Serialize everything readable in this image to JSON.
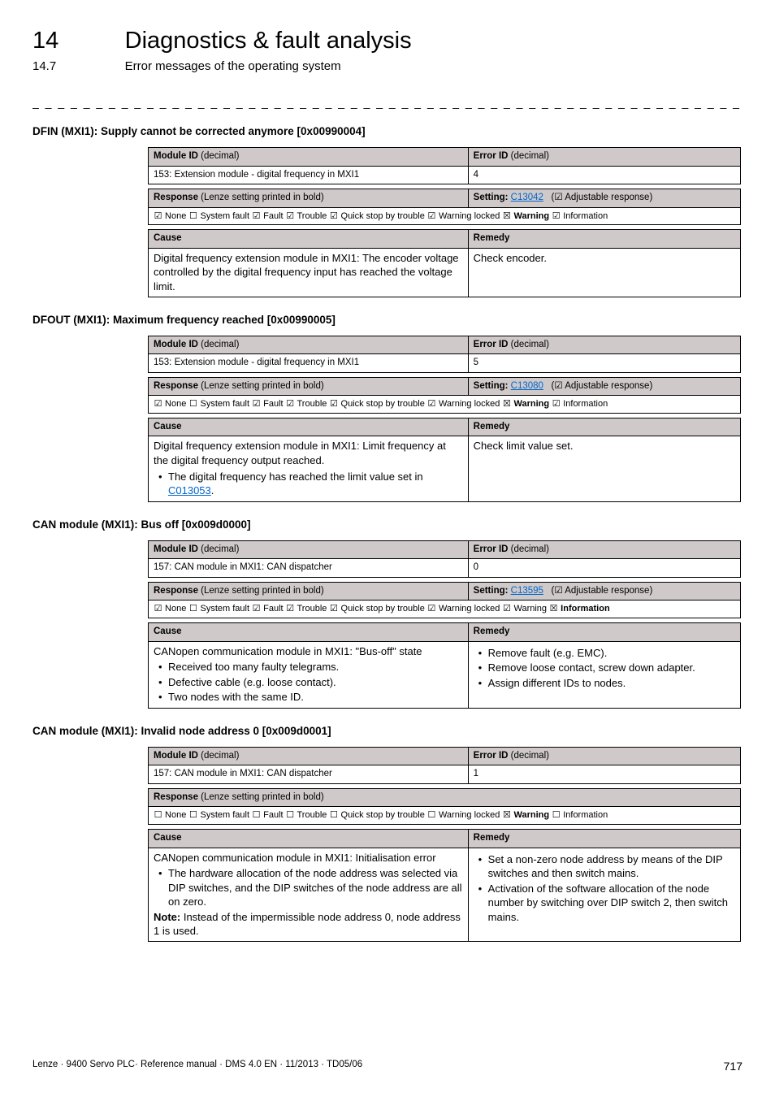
{
  "header": {
    "chapter_num": "14",
    "chapter_title": "Diagnostics & fault analysis",
    "section_num": "14.7",
    "section_title": "Error messages of the operating system"
  },
  "dashline": "_ _ _ _ _ _ _ _ _ _ _ _ _ _ _ _ _ _ _ _ _ _ _ _ _ _ _ _ _ _ _ _ _ _ _ _ _ _ _ _ _ _ _ _ _ _ _ _ _ _ _ _ _ _ _ _ _ _ _ _ _",
  "labels": {
    "module_id": "Module ID",
    "error_id": "Error ID",
    "decimal_suffix": " (decimal)",
    "response": "Response",
    "response_note": " (Lenze setting printed in bold)",
    "setting": "Setting: ",
    "adj_resp": " Adjustable response)",
    "cause": "Cause",
    "remedy": "Remedy",
    "note_prefix": "Note:"
  },
  "glyph": {
    "chk": "☑",
    "unchk": "☐",
    "x": "☒",
    "chk_paren_open": "(☑"
  },
  "errors": [
    {
      "heading": "DFIN (MXI1): Supply cannot be corrected anymore [0x00990004]",
      "module_id": "153: Extension module - digital frequency in MXI1",
      "error_id": "4",
      "setting_code": "C13042",
      "has_setting_row": true,
      "responses": {
        "none": "☑",
        "system_fault": "☐",
        "fault": "☑",
        "trouble": "☑",
        "quick_stop": "☑",
        "warning_locked": "☑",
        "warning": "☒",
        "warning_bold": true,
        "information": "☑",
        "information_bold": false
      },
      "cause_html": "Digital frequency extension module in MXI1: The encoder voltage controlled by the digital frequency input has reached the voltage limit.",
      "remedy_html": "Check encoder."
    },
    {
      "heading": "DFOUT (MXI1): Maximum frequency reached [0x00990005]",
      "module_id": "153: Extension module - digital frequency in MXI1",
      "error_id": "5",
      "setting_code": "C13080",
      "has_setting_row": true,
      "responses": {
        "none": "☑",
        "system_fault": "☐",
        "fault": "☑",
        "trouble": "☑",
        "quick_stop": "☑",
        "warning_locked": "☑",
        "warning": "☒",
        "warning_bold": true,
        "information": "☑",
        "information_bold": false
      },
      "cause_html": "Digital frequency extension module in MXI1: Limit frequency at the digital frequency output reached.<ul><li>The digital frequency has reached the limit value set in <a class='link' data-name='code-link' data-interactable='true'>C013053</a>.</li></ul>",
      "remedy_html": "Check limit value set."
    },
    {
      "heading": "CAN module (MXI1): Bus off [0x009d0000]",
      "module_id": "157: CAN module in MXI1: CAN dispatcher",
      "error_id": "0",
      "setting_code": "C13595",
      "has_setting_row": true,
      "responses": {
        "none": "☑",
        "system_fault": "☐",
        "fault": "☑",
        "trouble": "☑",
        "quick_stop": "☑",
        "warning_locked": "☑",
        "warning": "☑",
        "warning_bold": false,
        "information": "☒",
        "information_bold": true
      },
      "cause_html": "CANopen communication module in MXI1: \"Bus-off\" state<ul><li>Received too many faulty telegrams.</li><li>Defective cable (e.g. loose contact).</li><li>Two nodes with the same ID.</li></ul>",
      "remedy_html": "<ul><li>Remove fault (e.g. EMC).</li><li>Remove loose contact, screw down adapter.</li><li>Assign different IDs to nodes.</li></ul>"
    },
    {
      "heading": "CAN module (MXI1): Invalid node address 0 [0x009d0001]",
      "module_id": "157: CAN module in MXI1: CAN dispatcher",
      "error_id": "1",
      "setting_code": "",
      "has_setting_row": false,
      "responses": {
        "none": "☐",
        "system_fault": "☐",
        "fault": "☐",
        "trouble": "☐",
        "quick_stop": "☐",
        "warning_locked": "☐",
        "warning": "☒",
        "warning_bold": true,
        "information": "☐",
        "information_bold": false
      },
      "cause_html": "CANopen communication module in MXI1: Initialisation error<ul><li>The hardware allocation of the node address was selected via DIP switches, and the DIP switches of the node address are all on zero.</li></ul><b>Note:</b> Instead of the impermissible node address 0, node address 1 is used.",
      "remedy_html": "<ul><li>Set a non-zero node address by means of the DIP switches and then switch mains.</li><li>Activation of the software allocation of the node number by switching over DIP switch 2, then switch mains.</li></ul>"
    }
  ],
  "resp_labels": {
    "none": " None  ",
    "system_fault": " System fault  ",
    "fault": " Fault  ",
    "trouble": " Trouble  ",
    "quick_stop": " Quick stop by trouble  ",
    "warning_locked": " Warning locked  ",
    "warning": " Warning  ",
    "information": " Information"
  },
  "footer": {
    "text": "Lenze · 9400 Servo PLC· Reference manual · DMS 4.0 EN · 11/2013 · TD05/06",
    "page": "717"
  }
}
